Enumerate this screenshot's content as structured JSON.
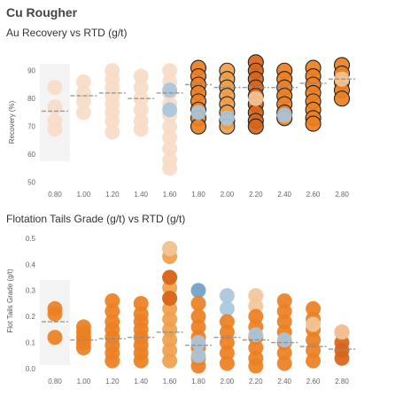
{
  "header": {
    "title": "Cu Rougher",
    "chart1_title": "Au Recovery vs RTD (g/t)",
    "chart2_title": "Flotation Tails Grade (g/t) vs RTD (g/t)"
  },
  "chart_data": [
    {
      "type": "scatter",
      "title": "Au Recovery vs RTD (g/t)",
      "ylabel": "Recovery (%)",
      "xlabel": "",
      "categories": [
        "0.80",
        "1.00",
        "1.20",
        "1.40",
        "1.60",
        "1.80",
        "2.00",
        "2.20",
        "2.40",
        "2.60",
        "2.80"
      ],
      "ylim": [
        48,
        95
      ],
      "yticks": [
        50,
        60,
        70,
        80,
        90
      ],
      "grid": false,
      "colors": {
        "pale": "#f6dcc8",
        "light": "#f3c59a",
        "mid": "#f0a04a",
        "orange": "#ec7f22",
        "dark": "#d8641a",
        "blue": "#a9c6dc"
      },
      "medians": [
        75.5,
        81,
        82,
        80,
        82,
        85,
        84,
        84,
        84,
        85.5,
        87
      ],
      "points": [
        {
          "x": "0.80",
          "values": [
            84,
            77,
            72,
            69
          ],
          "color": "pale"
        },
        {
          "x": "1.00",
          "values": [
            86,
            82,
            79,
            75
          ],
          "color": "pale"
        },
        {
          "x": "1.20",
          "values": [
            90,
            87,
            84,
            81,
            78,
            75,
            72,
            68
          ],
          "color": "pale"
        },
        {
          "x": "1.40",
          "values": [
            88,
            84,
            80,
            76,
            72,
            69
          ],
          "color": "pale"
        },
        {
          "x": "1.60",
          "values": [
            90,
            86,
            82,
            78,
            74,
            70,
            66,
            62,
            58,
            55
          ],
          "color": "pale"
        },
        {
          "x": "1.60",
          "values": [
            83,
            76
          ],
          "color": "blue"
        },
        {
          "x": "1.80",
          "values": [
            91,
            88,
            85,
            82,
            79,
            76,
            73,
            70
          ],
          "color": "orange",
          "outlined": true
        },
        {
          "x": "1.80",
          "values": [
            75
          ],
          "color": "blue"
        },
        {
          "x": "2.00",
          "values": [
            90,
            87,
            84,
            81,
            78,
            75,
            72,
            70
          ],
          "color": "mid",
          "outlined": true
        },
        {
          "x": "2.00",
          "values": [
            73
          ],
          "color": "blue"
        },
        {
          "x": "2.20",
          "values": [
            93,
            90,
            87,
            84,
            81,
            78,
            75,
            72,
            70
          ],
          "color": "dark",
          "outlined": true
        },
        {
          "x": "2.20",
          "values": [
            80
          ],
          "color": "light"
        },
        {
          "x": "2.40",
          "values": [
            90,
            87,
            84,
            81,
            78,
            75,
            73
          ],
          "color": "orange",
          "outlined": true
        },
        {
          "x": "2.40",
          "values": [
            74
          ],
          "color": "blue"
        },
        {
          "x": "2.60",
          "values": [
            91,
            88,
            85,
            82,
            79,
            76,
            73,
            71
          ],
          "color": "orange",
          "outlined": true
        },
        {
          "x": "2.80",
          "values": [
            92,
            89,
            86,
            83,
            80
          ],
          "color": "orange",
          "outlined": true
        },
        {
          "x": "2.80",
          "values": [
            87
          ],
          "color": "light"
        }
      ]
    },
    {
      "type": "scatter",
      "title": "Flotation Tails Grade (g/t) vs RTD (g/t)",
      "ylabel": "Flot Tails Grade (g/t)",
      "xlabel": "",
      "categories": [
        "0.80",
        "1.00",
        "1.20",
        "1.40",
        "1.60",
        "1.80",
        "2.00",
        "2.20",
        "2.40",
        "2.60",
        "2.80"
      ],
      "ylim": [
        0,
        0.52
      ],
      "yticks": [
        0.0,
        0.1,
        0.2,
        0.3,
        0.4,
        0.5
      ],
      "grid": false,
      "colors": {
        "pale": "#f6dcc8",
        "light": "#f3c59a",
        "mid": "#f0a04a",
        "orange": "#ec7f22",
        "dark": "#d8641a",
        "blue": "#6f9fca",
        "lightblue": "#a9c6dc"
      },
      "medians": [
        0.18,
        0.11,
        0.115,
        0.12,
        0.14,
        0.09,
        0.12,
        0.11,
        0.1,
        0.085,
        0.075
      ],
      "points": [
        {
          "x": "0.80",
          "values": [
            0.23,
            0.21,
            0.12
          ],
          "color": "orange"
        },
        {
          "x": "1.00",
          "values": [
            0.16,
            0.14,
            0.12,
            0.1,
            0.08
          ],
          "color": "orange"
        },
        {
          "x": "1.20",
          "values": [
            0.26,
            0.22,
            0.18,
            0.15,
            0.12,
            0.09,
            0.06,
            0.03
          ],
          "color": "orange"
        },
        {
          "x": "1.40",
          "values": [
            0.25,
            0.21,
            0.18,
            0.15,
            0.12,
            0.09,
            0.06,
            0.03
          ],
          "color": "orange"
        },
        {
          "x": "1.60",
          "values": [
            0.46,
            0.43,
            0.35,
            0.31,
            0.27,
            0.23,
            0.19,
            0.15,
            0.11,
            0.07,
            0.03
          ],
          "color": "mid"
        },
        {
          "x": "1.60",
          "values": [
            0.35,
            0.27
          ],
          "color": "dark"
        },
        {
          "x": "1.60",
          "values": [
            0.46
          ],
          "color": "light"
        },
        {
          "x": "1.80",
          "values": [
            0.3
          ],
          "color": "blue"
        },
        {
          "x": "1.80",
          "values": [
            0.25,
            0.2,
            0.16,
            0.12,
            0.08,
            0.04,
            0.01
          ],
          "color": "orange"
        },
        {
          "x": "1.80",
          "values": [
            0.1,
            0.05
          ],
          "color": "lightblue"
        },
        {
          "x": "2.00",
          "values": [
            0.28,
            0.23
          ],
          "color": "lightblue"
        },
        {
          "x": "2.00",
          "values": [
            0.18,
            0.14,
            0.1,
            0.06,
            0.02
          ],
          "color": "orange"
        },
        {
          "x": "2.20",
          "values": [
            0.28,
            0.24
          ],
          "color": "light"
        },
        {
          "x": "2.20",
          "values": [
            0.2,
            0.16,
            0.12,
            0.08,
            0.04,
            0.01
          ],
          "color": "orange"
        },
        {
          "x": "2.20",
          "values": [
            0.13
          ],
          "color": "lightblue"
        },
        {
          "x": "2.40",
          "values": [
            0.26,
            0.22,
            0.18,
            0.14,
            0.1,
            0.06,
            0.02
          ],
          "color": "orange"
        },
        {
          "x": "2.40",
          "values": [
            0.11
          ],
          "color": "lightblue"
        },
        {
          "x": "2.60",
          "values": [
            0.23,
            0.19,
            0.15,
            0.11,
            0.07,
            0.03
          ],
          "color": "orange"
        },
        {
          "x": "2.60",
          "values": [
            0.17
          ],
          "color": "light"
        },
        {
          "x": "2.80",
          "values": [
            0.14,
            0.1,
            0.07,
            0.04
          ],
          "color": "dark"
        },
        {
          "x": "2.80",
          "values": [
            0.14
          ],
          "color": "light"
        }
      ]
    }
  ]
}
